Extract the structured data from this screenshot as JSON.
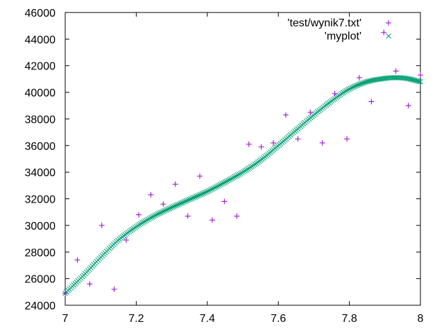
{
  "chart_data": {
    "type": "scatter",
    "title": "",
    "xlabel": "",
    "ylabel": "",
    "xlim": [
      7,
      8
    ],
    "ylim": [
      24000,
      46000
    ],
    "x_ticks": [
      "7",
      "7.2",
      "7.4",
      "7.6",
      "7.8",
      "8"
    ],
    "y_ticks": [
      "24000",
      "26000",
      "28000",
      "30000",
      "32000",
      "34000",
      "36000",
      "38000",
      "40000",
      "42000",
      "44000",
      "46000"
    ],
    "legend_position": "top-right",
    "series": [
      {
        "name": "'test/wynik7.txt'",
        "marker": "plus",
        "color": "#9400d3",
        "x": [
          7.0,
          7.034,
          7.069,
          7.103,
          7.138,
          7.172,
          7.207,
          7.241,
          7.276,
          7.31,
          7.345,
          7.379,
          7.414,
          7.448,
          7.483,
          7.517,
          7.552,
          7.586,
          7.621,
          7.655,
          7.69,
          7.724,
          7.759,
          7.793,
          7.828,
          7.862,
          7.897,
          7.931,
          7.966,
          8.0
        ],
        "y": [
          24900,
          27400,
          25600,
          30000,
          25200,
          28900,
          30800,
          32300,
          31600,
          33100,
          30700,
          33700,
          30400,
          31800,
          30700,
          36100,
          35900,
          36200,
          38300,
          36500,
          38500,
          36200,
          39900,
          36500,
          41100,
          39300,
          44500,
          41600,
          39000,
          41300
        ]
      },
      {
        "name": "'myplot'",
        "marker": "cross",
        "color": "#009e73",
        "curve_knots": {
          "x": [
            7.0,
            7.05,
            7.1,
            7.15,
            7.2,
            7.25,
            7.3,
            7.35,
            7.4,
            7.45,
            7.5,
            7.55,
            7.6,
            7.65,
            7.7,
            7.75,
            7.8,
            7.85,
            7.9,
            7.93,
            7.96,
            8.0
          ],
          "y": [
            24900,
            26200,
            27600,
            28900,
            29900,
            30700,
            31350,
            31950,
            32550,
            33250,
            34000,
            34900,
            36000,
            37150,
            38300,
            39350,
            40250,
            40800,
            41050,
            41100,
            41050,
            40800
          ]
        },
        "samples": 250
      }
    ]
  }
}
